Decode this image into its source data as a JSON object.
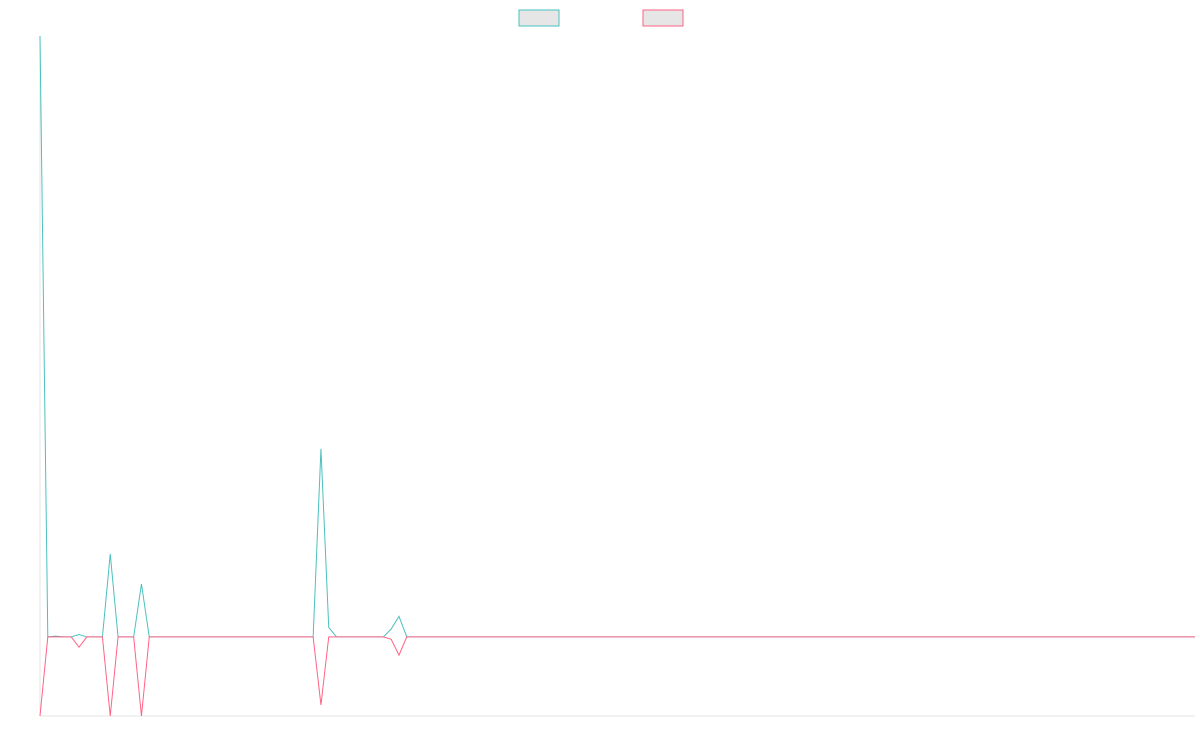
{
  "chart_data": {
    "type": "line",
    "title": "",
    "xlabel": "",
    "ylabel": "",
    "legend_position": "top-center",
    "grid": false,
    "x_count": 149,
    "ylim": [
      -10,
      76
    ],
    "series": [
      {
        "name": "",
        "color": "#4bc0c0",
        "fill": "#e6e6e6",
        "points": [
          [
            0,
            76
          ],
          [
            1,
            0
          ],
          [
            2,
            0.1
          ],
          [
            3,
            0
          ],
          [
            4,
            0
          ],
          [
            5,
            0.3
          ],
          [
            6,
            0
          ],
          [
            7,
            0
          ],
          [
            8,
            0
          ],
          [
            9,
            10.5
          ],
          [
            10,
            0
          ],
          [
            11,
            0
          ],
          [
            12,
            0
          ],
          [
            13,
            6.7
          ],
          [
            14,
            0
          ],
          [
            35,
            0
          ],
          [
            36,
            23.8
          ],
          [
            37,
            1.2
          ],
          [
            38,
            0
          ],
          [
            44,
            0
          ],
          [
            45,
            1.0
          ],
          [
            46,
            2.6
          ],
          [
            47,
            0
          ],
          [
            148,
            0
          ]
        ]
      },
      {
        "name": "",
        "color": "#ff6384",
        "fill": "#e6e6e6",
        "points": [
          [
            0,
            -10
          ],
          [
            1,
            0
          ],
          [
            2,
            0
          ],
          [
            3,
            0
          ],
          [
            4,
            0
          ],
          [
            5,
            -1.3
          ],
          [
            6,
            0
          ],
          [
            7,
            0
          ],
          [
            8,
            0
          ],
          [
            9,
            -10
          ],
          [
            10,
            0
          ],
          [
            11,
            0
          ],
          [
            12,
            0
          ],
          [
            13,
            -10
          ],
          [
            14,
            0
          ],
          [
            35,
            0
          ],
          [
            36,
            -8.6
          ],
          [
            37,
            0
          ],
          [
            44,
            0
          ],
          [
            45,
            -0.3
          ],
          [
            46,
            -2.3
          ],
          [
            47,
            0
          ],
          [
            148,
            0
          ]
        ]
      }
    ]
  }
}
